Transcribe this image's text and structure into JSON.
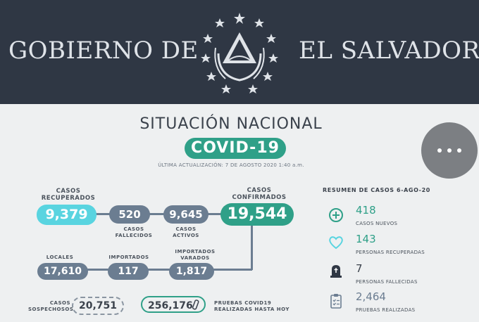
{
  "header": {
    "left_text": "GOBIERNO DE",
    "right_text": "EL SALVADOR"
  },
  "title": "SITUACIÓN NACIONAL",
  "covid_label": "COVID-19",
  "updated": "ÚLTIMA ACTUALIZACIÓN: 7 DE AGOSTO 2020 1:40 a.m.",
  "menu": {
    "icon": "more-horizontal-icon"
  },
  "stats": {
    "recuperados": {
      "label_1": "CASOS",
      "label_2": "RECUPERADOS",
      "value": "9,379"
    },
    "fallecidos": {
      "label_1": "CASOS",
      "label_2": "FALLECIDOS",
      "value": "520"
    },
    "activos": {
      "label_1": "CASOS",
      "label_2": "ACTIVOS",
      "value": "9,645"
    },
    "confirmados": {
      "label_1": "CASOS",
      "label_2": "CONFIRMADOS",
      "value": "19,544"
    },
    "locales": {
      "label": "LOCALES",
      "value": "17,610"
    },
    "importados": {
      "label": "IMPORTADOS",
      "value": "117"
    },
    "varados": {
      "label_1": "IMPORTADOS",
      "label_2": "VARADOS",
      "value": "1,817"
    },
    "sospechosos": {
      "label_1": "CASOS",
      "label_2": "SOSPECHOSOS",
      "value": "20,751"
    },
    "pruebas": {
      "label_1": "PRUEBAS COVID19",
      "label_2": "REALIZADAS HASTA HOY",
      "value": "256,176"
    }
  },
  "summary": {
    "title": "RESUMEN DE CASOS 6-AGO-20",
    "items": [
      {
        "icon": "plus-circle-icon",
        "value": "418",
        "label": "CASOS NUEVOS"
      },
      {
        "icon": "heart-icon",
        "value": "143",
        "label": "PERSONAS RECUPERADAS"
      },
      {
        "icon": "tombstone-icon",
        "value": "7",
        "label": "PERSONAS FALLECIDAS"
      },
      {
        "icon": "clipboard-checklist-icon",
        "value": "2,464",
        "label": "PRUEBAS REALIZADAS"
      }
    ]
  },
  "colors": {
    "header_bg": "#2f3744",
    "accent_green": "#2fa088",
    "accent_cyan": "#59d4e0",
    "slate": "#6b7d91"
  }
}
